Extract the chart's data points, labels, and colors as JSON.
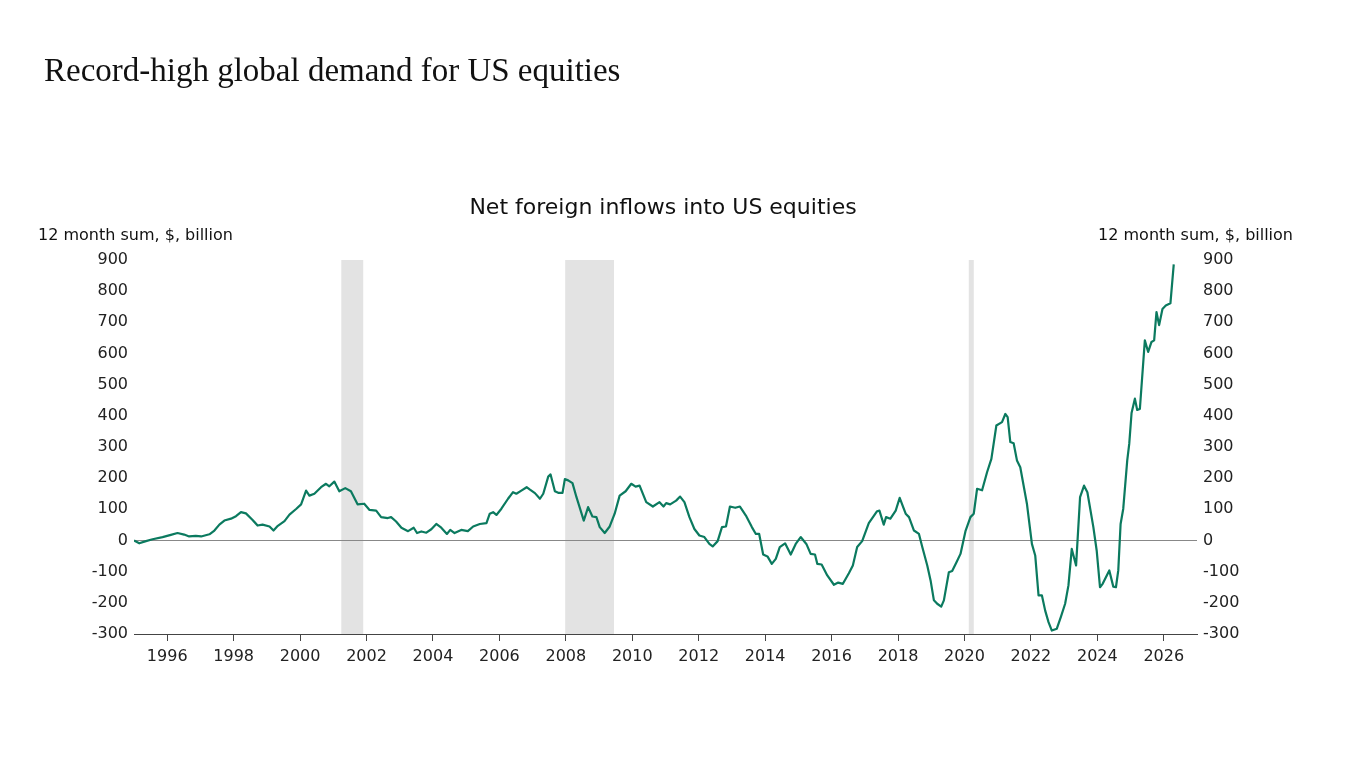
{
  "chart_data": {
    "type": "line",
    "title": "Record-high global demand for US equities",
    "subtitle": "Net foreign inflows into US equities",
    "ylabel": "12 month sum, $, billion",
    "y2label": "12 month sum, $, billion",
    "x": [
      1995.0,
      1995.16,
      1995.36,
      1995.56,
      1995.86,
      1996.11,
      1996.31,
      1996.51,
      1996.66,
      1996.86,
      1997.02,
      1997.27,
      1997.42,
      1997.57,
      1997.72,
      1997.92,
      1998.07,
      1998.22,
      1998.37,
      1998.57,
      1998.72,
      1998.87,
      1999.08,
      1999.2,
      1999.33,
      1999.53,
      1999.68,
      1999.88,
      2000.03,
      2000.18,
      2000.28,
      2000.43,
      2000.63,
      2000.78,
      2000.88,
      2001.03,
      2001.18,
      2001.36,
      2001.53,
      2001.73,
      2001.93,
      2002.09,
      2002.29,
      2002.44,
      2002.64,
      2002.74,
      2002.89,
      2003.05,
      2003.25,
      2003.42,
      2003.52,
      2003.65,
      2003.8,
      2003.95,
      2004.1,
      2004.25,
      2004.42,
      2004.52,
      2004.65,
      2004.85,
      2005.05,
      2005.21,
      2005.41,
      2005.61,
      2005.71,
      2005.81,
      2005.91,
      2006.06,
      2006.26,
      2006.41,
      2006.51,
      2006.66,
      2006.82,
      2006.92,
      2007.07,
      2007.22,
      2007.32,
      2007.47,
      2007.54,
      2007.67,
      2007.77,
      2007.9,
      2007.97,
      2008.07,
      2008.2,
      2008.32,
      2008.54,
      2008.67,
      2008.8,
      2008.92,
      2009.02,
      2009.17,
      2009.32,
      2009.47,
      2009.62,
      2009.8,
      2009.97,
      2010.1,
      2010.22,
      2010.42,
      2010.62,
      2010.82,
      2010.94,
      2011.02,
      2011.14,
      2011.32,
      2011.44,
      2011.57,
      2011.72,
      2011.87,
      2012.02,
      2012.17,
      2012.32,
      2012.42,
      2012.57,
      2012.7,
      2012.82,
      2012.94,
      2013.1,
      2013.24,
      2013.42,
      2013.6,
      2013.72,
      2013.82,
      2013.94,
      2014.07,
      2014.2,
      2014.32,
      2014.44,
      2014.6,
      2014.77,
      2014.92,
      2015.07,
      2015.24,
      2015.37,
      2015.5,
      2015.57,
      2015.7,
      2015.87,
      2016.07,
      2016.2,
      2016.34,
      2016.52,
      2016.64,
      2016.77,
      2016.92,
      2017.12,
      2017.37,
      2017.44,
      2017.57,
      2017.64,
      2017.77,
      2017.93,
      2018.05,
      2018.23,
      2018.33,
      2018.48,
      2018.63,
      2018.73,
      2018.88,
      2018.98,
      2019.08,
      2019.18,
      2019.3,
      2019.38,
      2019.53,
      2019.63,
      2019.76,
      2019.88,
      2020.03,
      2020.18,
      2020.28,
      2020.38,
      2020.53,
      2020.68,
      2020.81,
      2020.96,
      2021.13,
      2021.23,
      2021.3,
      2021.38,
      2021.48,
      2021.58,
      2021.68,
      2021.88,
      2022.03,
      2022.13,
      2022.23,
      2022.33,
      2022.43,
      2022.53,
      2022.63,
      2022.78,
      2022.9,
      2023.03,
      2023.13,
      2023.23,
      2023.36,
      2023.48,
      2023.6,
      2023.7,
      2023.88,
      2023.98,
      2024.08,
      2024.16,
      2024.36,
      2024.48,
      2024.56,
      2024.63,
      2024.7,
      2024.78,
      2024.9,
      2024.96,
      2025.03,
      2025.13,
      2025.2,
      2025.28,
      2025.43,
      2025.53,
      2025.63,
      2025.71,
      2025.78,
      2025.86,
      2025.96,
      2026.06,
      2026.2,
      2026.3
    ],
    "series": [
      {
        "color": "#0b7a5f",
        "values": [
          0,
          -9,
          -2,
          4,
          11,
          18,
          24,
          19,
          13,
          15,
          13,
          20,
          32,
          51,
          64,
          70,
          78,
          91,
          87,
          66,
          48,
          51,
          45,
          32,
          47,
          62,
          83,
          101,
          116,
          160,
          144,
          150,
          171,
          182,
          174,
          189,
          158,
          168,
          158,
          116,
          118,
          98,
          96,
          75,
          72,
          75,
          61,
          41,
          30,
          41,
          24,
          29,
          25,
          36,
          53,
          41,
          21,
          34,
          24,
          34,
          30,
          45,
          53,
          56,
          86,
          91,
          82,
          102,
          134,
          155,
          150,
          160,
          171,
          163,
          152,
          134,
          150,
          205,
          212,
          158,
          153,
          153,
          197,
          193,
          184,
          139,
          64,
          107,
          77,
          75,
          43,
          24,
          45,
          86,
          144,
          158,
          182,
          173,
          176,
          123,
          109,
          123,
          109,
          120,
          116,
          128,
          141,
          123,
          75,
          37,
          16,
          11,
          -11,
          -19,
          -2,
          43,
          45,
          109,
          105,
          109,
          80,
          43,
          21,
          21,
          -45,
          -51,
          -75,
          -59,
          -21,
          -9,
          -45,
          -11,
          11,
          -11,
          -43,
          -45,
          -75,
          -77,
          -112,
          -142,
          -135,
          -139,
          -105,
          -80,
          -21,
          -2,
          56,
          94,
          96,
          51,
          75,
          70,
          96,
          137,
          86,
          75,
          32,
          21,
          -21,
          -80,
          -128,
          -192,
          -203,
          -212,
          -192,
          -102,
          -98,
          -70,
          -43,
          30,
          75,
          86,
          166,
          161,
          219,
          262,
          369,
          380,
          406,
          396,
          316,
          312,
          257,
          235,
          118,
          -11,
          -48,
          -176,
          -176,
          -225,
          -262,
          -289,
          -283,
          -246,
          -203,
          -144,
          -27,
          -80,
          139,
          176,
          155,
          43,
          -32,
          -150,
          -139,
          -96,
          -148,
          -150,
          -96,
          53,
          102,
          257,
          310,
          409,
          455,
          419,
          422,
          642,
          605,
          637,
          642,
          733,
          691,
          743,
          754,
          761,
          886
        ]
      }
    ],
    "xlim": [
      1995,
      2027
    ],
    "xticks": [
      1996,
      1998,
      2000,
      2002,
      2004,
      2006,
      2008,
      2010,
      2012,
      2014,
      2016,
      2018,
      2020,
      2022,
      2024,
      2026
    ],
    "ylim": [
      -300,
      900
    ],
    "yticks": [
      -300,
      -200,
      -100,
      0,
      100,
      200,
      300,
      400,
      500,
      600,
      700,
      800,
      900
    ],
    "y2lim": [
      -300,
      900
    ],
    "y2ticks": [
      -300,
      -200,
      -100,
      0,
      100,
      200,
      300,
      400,
      500,
      600,
      700,
      800,
      900
    ],
    "bands": [
      {
        "axis": "x",
        "from": 2001.24,
        "to": 2001.9,
        "color": "#e3e3e3"
      },
      {
        "axis": "x",
        "from": 2007.98,
        "to": 2009.45,
        "color": "#e3e3e3"
      },
      {
        "axis": "x",
        "from": 2020.13,
        "to": 2020.28,
        "color": "#e3e3e3"
      }
    ],
    "ref_lines": [
      {
        "axis": "y",
        "value": 0,
        "color": "#888888"
      }
    ]
  }
}
